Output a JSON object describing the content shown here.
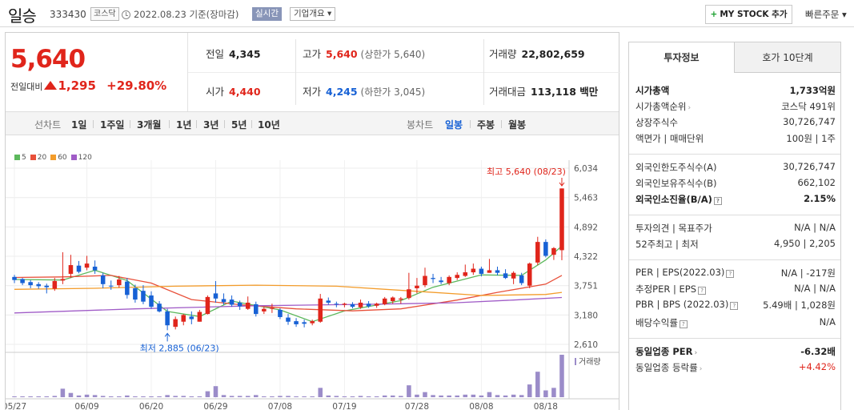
{
  "header": {
    "name": "일승",
    "code": "333430",
    "market": "코스닥",
    "date": "2022.08.23 기준(장마감)",
    "realtime": "실시간",
    "corp": "기업개요 ▾",
    "mystock": "MY STOCK 추가",
    "quick_order": "빠른주문 ▾"
  },
  "price": {
    "current": "5,640",
    "change_label": "전일대비",
    "change": "1,295",
    "rate": "+29.80%"
  },
  "summary": {
    "prev_label": "전일",
    "prev": "4,345",
    "high_label": "고가",
    "high": "5,640",
    "upper": "(상한가 5,640)",
    "volume_label": "거래량",
    "volume": "22,802,659",
    "open_label": "시가",
    "open": "4,440",
    "low_label": "저가",
    "low": "4,245",
    "lower": "(하한가 3,045)",
    "amount_label": "거래대금",
    "amount": "113,118 백만"
  },
  "periods": {
    "line_label": "선차트",
    "items": [
      "1일",
      "1주일",
      "3개월",
      "1년",
      "3년",
      "5년",
      "10년"
    ],
    "candle_label": "봉차트",
    "candles": [
      "일봉",
      "주봉",
      "월봉"
    ],
    "active_candle": "일봉"
  },
  "legend": {
    "ma": [
      {
        "name": "5",
        "color": "#5cb85c"
      },
      {
        "name": "20",
        "color": "#e8503a"
      },
      {
        "name": "60",
        "color": "#f39c2b"
      },
      {
        "name": "120",
        "color": "#a05cc7"
      }
    ],
    "volume_label": "거래량"
  },
  "chart_data": {
    "type": "candlestick",
    "y_ticks": [
      6034,
      5463,
      4892,
      4322,
      3751,
      3180,
      2610
    ],
    "y_tick_labels": [
      "6,034",
      "5,463",
      "4,892",
      "4,322",
      "3,751",
      "3,180",
      "2,610"
    ],
    "ylim": [
      2610,
      6034
    ],
    "x_labels": [
      "05/27",
      "06/09",
      "06/20",
      "06/29",
      "07/08",
      "07/19",
      "07/28",
      "08/08",
      "08/18"
    ],
    "max_annotation": "최고 5,640 (08/23)",
    "min_annotation": "최저 2,885 (06/23)",
    "candles": [
      [
        3920,
        3960,
        3800,
        3860
      ],
      [
        3880,
        3900,
        3760,
        3800
      ],
      [
        3820,
        3860,
        3700,
        3760
      ],
      [
        3780,
        3820,
        3690,
        3740
      ],
      [
        3750,
        3790,
        3600,
        3720
      ],
      [
        3690,
        3900,
        3650,
        3840
      ],
      [
        3850,
        4400,
        3780,
        3880
      ],
      [
        3980,
        4350,
        3900,
        4150
      ],
      [
        4140,
        4230,
        3990,
        4020
      ],
      [
        4100,
        4330,
        4050,
        4180
      ],
      [
        4120,
        4240,
        3980,
        4050
      ],
      [
        3950,
        4000,
        3700,
        3780
      ],
      [
        3750,
        3850,
        3670,
        3740
      ],
      [
        3760,
        3940,
        3710,
        3870
      ],
      [
        3830,
        3900,
        3500,
        3570
      ],
      [
        3700,
        3770,
        3420,
        3480
      ],
      [
        3650,
        3760,
        3390,
        3440
      ],
      [
        3560,
        3640,
        3300,
        3340
      ],
      [
        3400,
        3450,
        3230,
        3250
      ],
      [
        3250,
        3300,
        2885,
        2980
      ],
      [
        2950,
        3150,
        2900,
        3100
      ],
      [
        3050,
        3200,
        2980,
        3180
      ],
      [
        3150,
        3250,
        3000,
        3100
      ],
      [
        3050,
        3280,
        3050,
        3240
      ],
      [
        3200,
        3560,
        3190,
        3530
      ],
      [
        3600,
        3840,
        3420,
        3500
      ],
      [
        3490,
        3600,
        3380,
        3430
      ],
      [
        3480,
        3560,
        3340,
        3380
      ],
      [
        3420,
        3460,
        3280,
        3350
      ],
      [
        3300,
        3540,
        3280,
        3420
      ],
      [
        3390,
        3440,
        3150,
        3200
      ],
      [
        3250,
        3340,
        3200,
        3300
      ],
      [
        3300,
        3400,
        3220,
        3320
      ],
      [
        3280,
        3310,
        3100,
        3140
      ],
      [
        3130,
        3200,
        2990,
        3050
      ],
      [
        3060,
        3120,
        2950,
        3000
      ],
      [
        3040,
        3090,
        2940,
        3010
      ],
      [
        3020,
        3090,
        2980,
        3060
      ],
      [
        3050,
        3590,
        3030,
        3500
      ],
      [
        3460,
        3520,
        3380,
        3420
      ],
      [
        3400,
        3440,
        3330,
        3390
      ],
      [
        3380,
        3420,
        3330,
        3400
      ],
      [
        3390,
        3430,
        3310,
        3340
      ],
      [
        3330,
        3480,
        3300,
        3420
      ],
      [
        3400,
        3450,
        3320,
        3350
      ],
      [
        3360,
        3420,
        3320,
        3400
      ],
      [
        3390,
        3530,
        3370,
        3500
      ],
      [
        3450,
        3540,
        3400,
        3520
      ],
      [
        3480,
        3530,
        3400,
        3500
      ],
      [
        3510,
        4000,
        3480,
        3680
      ],
      [
        3700,
        3900,
        3600,
        3750
      ],
      [
        3760,
        4100,
        3720,
        3940
      ],
      [
        3900,
        3980,
        3800,
        3880
      ],
      [
        3850,
        3920,
        3780,
        3820
      ],
      [
        3800,
        3950,
        3760,
        3920
      ],
      [
        3900,
        4010,
        3860,
        3960
      ],
      [
        3940,
        4160,
        3920,
        4010
      ],
      [
        4010,
        4180,
        3960,
        4080
      ],
      [
        4080,
        4120,
        3930,
        3980
      ],
      [
        4000,
        4270,
        4000,
        4050
      ],
      [
        4050,
        4120,
        3950,
        4000
      ],
      [
        3990,
        4070,
        3880,
        3900
      ],
      [
        3890,
        4030,
        3780,
        4000
      ],
      [
        3950,
        4000,
        3760,
        3800
      ],
      [
        3750,
        4200,
        3700,
        4180
      ],
      [
        4200,
        4700,
        4150,
        4600
      ],
      [
        4600,
        4650,
        4300,
        4330
      ],
      [
        4350,
        4500,
        4250,
        4480
      ],
      [
        4440,
        5640,
        4245,
        5640
      ]
    ],
    "volumes": [
      0.02,
      0.02,
      0.02,
      0.02,
      0.02,
      0.03,
      0.2,
      0.1,
      0.04,
      0.06,
      0.05,
      0.03,
      0.02,
      0.02,
      0.04,
      0.02,
      0.02,
      0.02,
      0.02,
      0.05,
      0.03,
      0.03,
      0.02,
      0.02,
      0.14,
      0.26,
      0.05,
      0.03,
      0.03,
      0.03,
      0.05,
      0.02,
      0.02,
      0.03,
      0.03,
      0.02,
      0.02,
      0.02,
      0.22,
      0.04,
      0.03,
      0.02,
      0.02,
      0.03,
      0.02,
      0.02,
      0.04,
      0.04,
      0.03,
      0.28,
      0.06,
      0.12,
      0.05,
      0.04,
      0.04,
      0.04,
      0.06,
      0.06,
      0.04,
      0.12,
      0.05,
      0.04,
      0.06,
      0.05,
      0.3,
      0.6,
      0.16,
      0.22,
      1.0
    ],
    "ma": {
      "5": [
        [
          0,
          3870
        ],
        [
          6,
          3860
        ],
        [
          10,
          4050
        ],
        [
          14,
          3850
        ],
        [
          19,
          3250
        ],
        [
          23,
          3150
        ],
        [
          27,
          3450
        ],
        [
          33,
          3280
        ],
        [
          37,
          3050
        ],
        [
          41,
          3260
        ],
        [
          48,
          3460
        ],
        [
          52,
          3720
        ],
        [
          58,
          3960
        ],
        [
          63,
          3950
        ],
        [
          66,
          4250
        ],
        [
          68,
          4520
        ]
      ],
      "20": [
        [
          0,
          3910
        ],
        [
          6,
          3920
        ],
        [
          12,
          3950
        ],
        [
          17,
          3800
        ],
        [
          22,
          3480
        ],
        [
          28,
          3380
        ],
        [
          35,
          3300
        ],
        [
          42,
          3260
        ],
        [
          48,
          3300
        ],
        [
          55,
          3470
        ],
        [
          60,
          3620
        ],
        [
          66,
          3780
        ],
        [
          68,
          3950
        ]
      ],
      "60": [
        [
          0,
          3680
        ],
        [
          10,
          3700
        ],
        [
          20,
          3740
        ],
        [
          30,
          3760
        ],
        [
          40,
          3740
        ],
        [
          50,
          3640
        ],
        [
          58,
          3560
        ],
        [
          66,
          3580
        ],
        [
          68,
          3620
        ]
      ],
      "120": [
        [
          0,
          3220
        ],
        [
          15,
          3300
        ],
        [
          30,
          3360
        ],
        [
          45,
          3390
        ],
        [
          55,
          3420
        ],
        [
          62,
          3470
        ],
        [
          68,
          3520
        ]
      ]
    }
  },
  "invest": {
    "tab_on": "투자정보",
    "tab_off": "호가 10단계",
    "rows": [
      {
        "k": "시가총액",
        "v": "1,733억원",
        "bold": true
      },
      {
        "k": "시가총액순위",
        "v": "코스닥 491위"
      },
      {
        "k": "상장주식수",
        "v": "30,726,747"
      },
      {
        "k": "액면가 | 매매단위",
        "v": "100원 | 1주"
      },
      {
        "k": "외국인한도주식수(A)",
        "v": "30,726,747"
      },
      {
        "k": "외국인보유주식수(B)",
        "v": "662,102"
      },
      {
        "k": "외국인소진율(B/A)",
        "v": "2.15%",
        "bold": true
      },
      {
        "k": "투자의견 | 목표주가",
        "v": "N/A | N/A"
      },
      {
        "k": "52주최고 | 최저",
        "v": "4,950 | 2,205"
      },
      {
        "k": "PER | EPS(2022.03)",
        "v": "N/A | -217원"
      },
      {
        "k": "추정PER | EPS",
        "v": "N/A | N/A"
      },
      {
        "k": "PBR | BPS (2022.03)",
        "v": "5.49배 | 1,028원"
      },
      {
        "k": "배당수익률",
        "v": "N/A"
      },
      {
        "k": "동일업종 PER",
        "v": "-6.32배",
        "bold": true
      },
      {
        "k": "동일업종 등락률",
        "v": "+4.42%",
        "red": true
      }
    ]
  }
}
